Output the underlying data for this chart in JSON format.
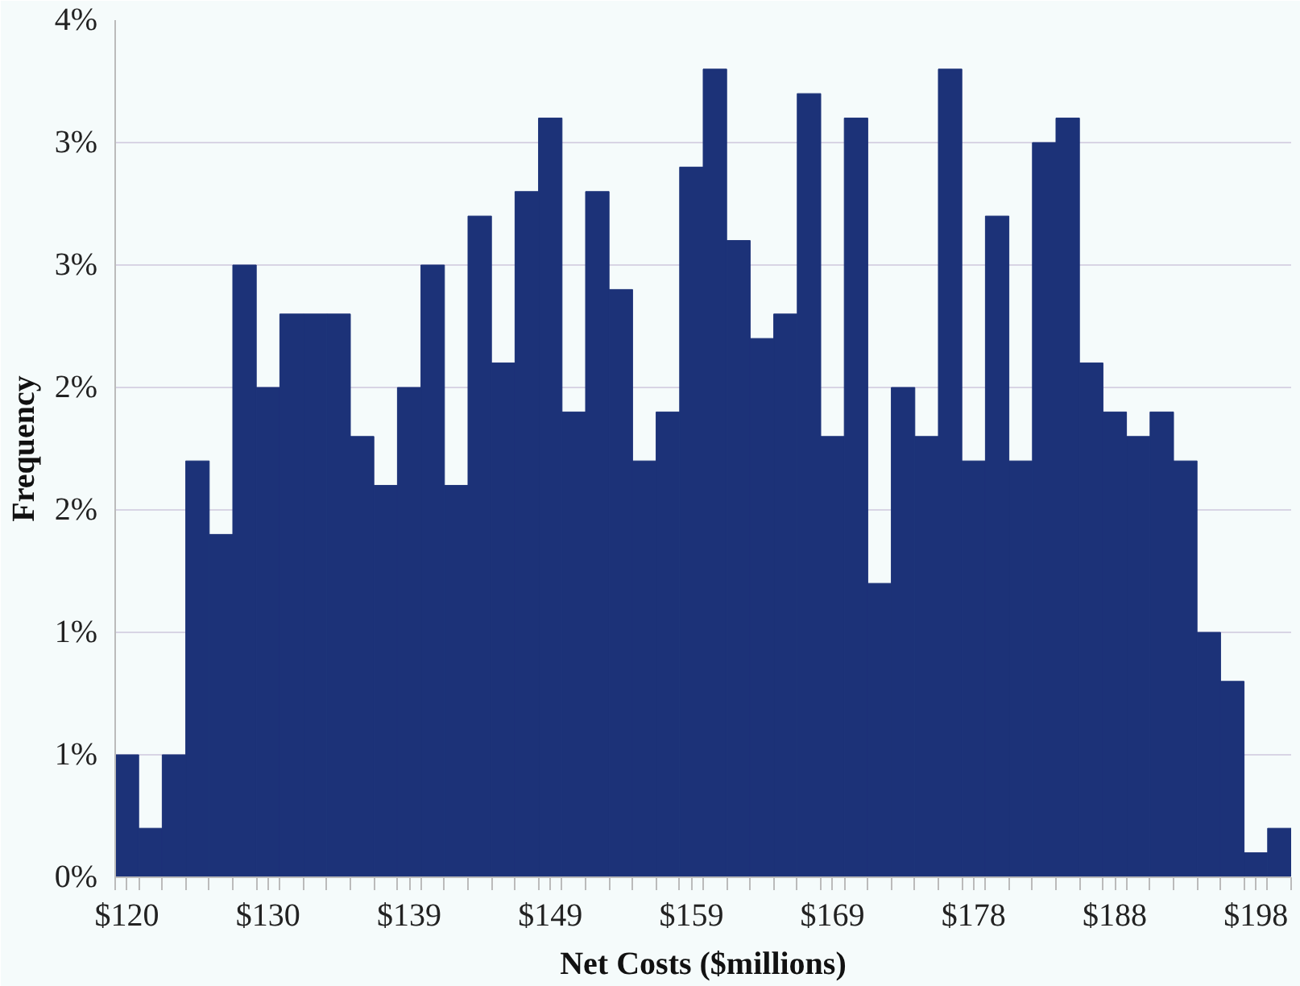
{
  "chart_data": {
    "type": "bar",
    "xlabel": "Net Costs ($millions)",
    "ylabel": "Frequency",
    "categories": [
      "$120",
      null,
      null,
      null,
      null,
      null,
      "$130",
      null,
      null,
      null,
      null,
      null,
      "$139",
      null,
      null,
      null,
      null,
      null,
      "$149",
      null,
      null,
      null,
      null,
      null,
      "$159",
      null,
      null,
      null,
      null,
      null,
      "$169",
      null,
      null,
      null,
      null,
      null,
      "$178",
      null,
      null,
      null,
      null,
      null,
      "$188",
      null,
      null,
      null,
      null,
      null,
      "$198",
      null
    ],
    "values": [
      0.5,
      0.2,
      0.5,
      1.7,
      1.4,
      2.5,
      2.0,
      2.3,
      2.3,
      2.3,
      1.8,
      1.6,
      2.0,
      2.5,
      1.6,
      2.7,
      2.1,
      2.8,
      3.1,
      1.9,
      2.8,
      2.4,
      1.7,
      1.9,
      2.9,
      3.3,
      2.6,
      2.2,
      2.3,
      3.2,
      1.8,
      3.1,
      1.2,
      2.0,
      1.8,
      3.3,
      1.7,
      2.7,
      1.7,
      3.0,
      3.1,
      2.1,
      1.9,
      1.8,
      1.9,
      1.7,
      1.0,
      0.8,
      0.1,
      0.2
    ],
    "color": "#1c3278",
    "ylim": [
      0,
      3.5
    ],
    "yticks": [
      {
        "value": 0,
        "label": "0%"
      },
      {
        "value": 0.5,
        "label": "1%"
      },
      {
        "value": 1,
        "label": "1%"
      },
      {
        "value": 1.5,
        "label": "2%"
      },
      {
        "value": 2,
        "label": "2%"
      },
      {
        "value": 2.5,
        "label": "3%"
      },
      {
        "value": 3,
        "label": "3%"
      },
      {
        "value": 3.5,
        "label": "4%"
      }
    ],
    "grid": "y"
  }
}
